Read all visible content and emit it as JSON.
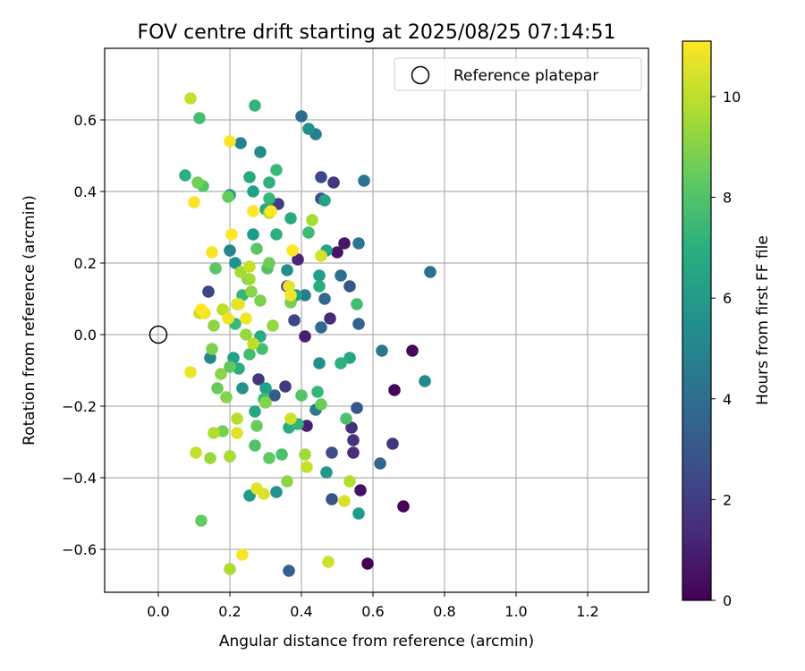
{
  "chart_data": {
    "type": "scatter",
    "title": "FOV centre drift starting at 2025/08/25 07:14:51",
    "xlabel": "Angular distance from reference (arcmin)",
    "ylabel": "Rotation from reference (arcmin)",
    "xlim": [
      -0.15,
      1.37
    ],
    "ylim": [
      -0.72,
      0.8
    ],
    "x_ticks": [
      0.0,
      0.2,
      0.4,
      0.6,
      0.8,
      1.0,
      1.2
    ],
    "x_tick_labels": [
      "0.0",
      "0.2",
      "0.4",
      "0.6",
      "0.8",
      "1.0",
      "1.2"
    ],
    "y_ticks": [
      -0.6,
      -0.4,
      -0.2,
      0.0,
      0.2,
      0.4,
      0.6
    ],
    "y_tick_labels": [
      "−0.6",
      "−0.4",
      "−0.2",
      "0.0",
      "0.2",
      "0.4",
      "0.6"
    ],
    "grid": true,
    "legend": {
      "position": "top-right",
      "entries": [
        "Reference platepar"
      ]
    },
    "reference_point": {
      "x": 0.0,
      "y": 0.0,
      "label": "Reference platepar"
    },
    "colorbar": {
      "label": "Hours from first FF file",
      "colormap": "viridis",
      "range": [
        0,
        11.1
      ],
      "ticks": [
        0,
        2,
        4,
        6,
        8,
        10
      ],
      "tick_labels": [
        "0",
        "2",
        "4",
        "6",
        "8",
        "10"
      ]
    },
    "points": [
      {
        "x": 0.685,
        "y": -0.48,
        "h": 0.1
      },
      {
        "x": 0.585,
        "y": -0.64,
        "h": 0.1
      },
      {
        "x": 0.66,
        "y": -0.155,
        "h": 0.2
      },
      {
        "x": 0.71,
        "y": -0.045,
        "h": 0.3
      },
      {
        "x": 0.565,
        "y": -0.435,
        "h": 0.5
      },
      {
        "x": 0.5,
        "y": 0.23,
        "h": 0.6
      },
      {
        "x": 0.52,
        "y": 0.255,
        "h": 0.7
      },
      {
        "x": 0.415,
        "y": -0.255,
        "h": 1.0
      },
      {
        "x": 0.41,
        "y": -0.005,
        "h": 1.0
      },
      {
        "x": 0.39,
        "y": 0.21,
        "h": 1.2
      },
      {
        "x": 0.48,
        "y": 0.045,
        "h": 1.3
      },
      {
        "x": 0.545,
        "y": -0.33,
        "h": 1.4
      },
      {
        "x": 0.545,
        "y": -0.295,
        "h": 1.6
      },
      {
        "x": 0.54,
        "y": -0.26,
        "h": 1.6
      },
      {
        "x": 0.655,
        "y": -0.305,
        "h": 1.7
      },
      {
        "x": 0.49,
        "y": 0.425,
        "h": 1.8
      },
      {
        "x": 0.28,
        "y": -0.125,
        "h": 1.8
      },
      {
        "x": 0.36,
        "y": 0.135,
        "h": 1.9
      },
      {
        "x": 0.355,
        "y": -0.145,
        "h": 1.9
      },
      {
        "x": 0.335,
        "y": 0.365,
        "h": 2.0
      },
      {
        "x": 0.14,
        "y": 0.12,
        "h": 2.2
      },
      {
        "x": 0.38,
        "y": 0.04,
        "h": 2.3
      },
      {
        "x": 0.455,
        "y": 0.44,
        "h": 2.4
      },
      {
        "x": 0.455,
        "y": 0.38,
        "h": 2.6
      },
      {
        "x": 0.485,
        "y": -0.33,
        "h": 2.6
      },
      {
        "x": 0.485,
        "y": -0.46,
        "h": 2.8
      },
      {
        "x": 0.555,
        "y": -0.205,
        "h": 2.9
      },
      {
        "x": 0.535,
        "y": 0.135,
        "h": 3.0
      },
      {
        "x": 0.325,
        "y": -0.17,
        "h": 3.2
      },
      {
        "x": 0.365,
        "y": -0.66,
        "h": 3.4
      },
      {
        "x": 0.56,
        "y": 0.03,
        "h": 3.5
      },
      {
        "x": 0.62,
        "y": -0.36,
        "h": 3.6
      },
      {
        "x": 0.465,
        "y": 0.1,
        "h": 3.7
      },
      {
        "x": 0.455,
        "y": 0.02,
        "h": 3.8
      },
      {
        "x": 0.4,
        "y": 0.61,
        "h": 3.9
      },
      {
        "x": 0.76,
        "y": 0.175,
        "h": 4.0
      },
      {
        "x": 0.51,
        "y": 0.165,
        "h": 4.1
      },
      {
        "x": 0.575,
        "y": 0.43,
        "h": 4.2
      },
      {
        "x": 0.56,
        "y": 0.255,
        "h": 4.3
      },
      {
        "x": 0.625,
        "y": -0.045,
        "h": 4.4
      },
      {
        "x": 0.44,
        "y": -0.21,
        "h": 4.5
      },
      {
        "x": 0.31,
        "y": 0.35,
        "h": 4.6
      },
      {
        "x": 0.41,
        "y": 0.11,
        "h": 4.7
      },
      {
        "x": 0.44,
        "y": 0.56,
        "h": 4.8
      },
      {
        "x": 0.23,
        "y": 0.535,
        "h": 4.9
      },
      {
        "x": 0.2,
        "y": 0.235,
        "h": 5.0
      },
      {
        "x": 0.145,
        "y": -0.065,
        "h": 5.1
      },
      {
        "x": 0.745,
        "y": -0.13,
        "h": 5.3
      },
      {
        "x": 0.285,
        "y": 0.51,
        "h": 5.4
      },
      {
        "x": 0.36,
        "y": 0.18,
        "h": 5.5
      },
      {
        "x": 0.45,
        "y": -0.08,
        "h": 5.5
      },
      {
        "x": 0.42,
        "y": 0.575,
        "h": 5.6
      },
      {
        "x": 0.215,
        "y": 0.2,
        "h": 5.6
      },
      {
        "x": 0.33,
        "y": -0.44,
        "h": 5.7
      },
      {
        "x": 0.235,
        "y": -0.15,
        "h": 5.7
      },
      {
        "x": 0.47,
        "y": -0.385,
        "h": 5.8
      },
      {
        "x": 0.2,
        "y": 0.39,
        "h": 5.9
      },
      {
        "x": 0.255,
        "y": -0.45,
        "h": 6.0
      },
      {
        "x": 0.56,
        "y": -0.5,
        "h": 6.0
      },
      {
        "x": 0.265,
        "y": 0.28,
        "h": 6.1
      },
      {
        "x": 0.45,
        "y": 0.165,
        "h": 6.2
      },
      {
        "x": 0.265,
        "y": 0.4,
        "h": 6.2
      },
      {
        "x": 0.21,
        "y": -0.065,
        "h": 6.3
      },
      {
        "x": 0.3,
        "y": -0.15,
        "h": 6.3
      },
      {
        "x": 0.465,
        "y": 0.375,
        "h": 6.4
      },
      {
        "x": 0.385,
        "y": 0.11,
        "h": 6.4
      },
      {
        "x": 0.47,
        "y": 0.235,
        "h": 6.5
      },
      {
        "x": 0.535,
        "y": -0.065,
        "h": 6.5
      },
      {
        "x": 0.27,
        "y": -0.215,
        "h": 6.6
      },
      {
        "x": 0.3,
        "y": 0.35,
        "h": 6.6
      },
      {
        "x": 0.37,
        "y": 0.325,
        "h": 6.7
      },
      {
        "x": 0.255,
        "y": 0.44,
        "h": 6.7
      },
      {
        "x": 0.365,
        "y": -0.26,
        "h": 6.8
      },
      {
        "x": 0.285,
        "y": -0.005,
        "h": 6.8
      },
      {
        "x": 0.45,
        "y": 0.135,
        "h": 6.9
      },
      {
        "x": 0.225,
        "y": -0.095,
        "h": 6.9
      },
      {
        "x": 0.075,
        "y": 0.445,
        "h": 7.0
      },
      {
        "x": 0.33,
        "y": 0.28,
        "h": 7.0
      },
      {
        "x": 0.31,
        "y": 0.425,
        "h": 7.1
      },
      {
        "x": 0.51,
        "y": -0.08,
        "h": 7.1
      },
      {
        "x": 0.2,
        "y": -0.34,
        "h": 7.2
      },
      {
        "x": 0.39,
        "y": -0.25,
        "h": 7.2
      },
      {
        "x": 0.27,
        "y": 0.64,
        "h": 7.3
      },
      {
        "x": 0.235,
        "y": 0.11,
        "h": 7.3
      },
      {
        "x": 0.445,
        "y": -0.16,
        "h": 7.4
      },
      {
        "x": 0.31,
        "y": 0.38,
        "h": 7.4
      },
      {
        "x": 0.33,
        "y": 0.46,
        "h": 7.5
      },
      {
        "x": 0.215,
        "y": 0.03,
        "h": 7.5
      },
      {
        "x": 0.42,
        "y": 0.285,
        "h": 7.6
      },
      {
        "x": 0.295,
        "y": -0.18,
        "h": 7.6
      },
      {
        "x": 0.255,
        "y": -0.055,
        "h": 7.7
      },
      {
        "x": 0.115,
        "y": 0.605,
        "h": 7.7
      },
      {
        "x": 0.29,
        "y": -0.04,
        "h": 7.8
      },
      {
        "x": 0.555,
        "y": 0.085,
        "h": 7.8
      },
      {
        "x": 0.525,
        "y": -0.235,
        "h": 7.9
      },
      {
        "x": 0.345,
        "y": -0.335,
        "h": 7.9
      },
      {
        "x": 0.305,
        "y": 0.185,
        "h": 8.0
      },
      {
        "x": 0.27,
        "y": -0.31,
        "h": 8.0
      },
      {
        "x": 0.125,
        "y": 0.415,
        "h": 8.1
      },
      {
        "x": 0.4,
        "y": -0.17,
        "h": 8.1
      },
      {
        "x": 0.16,
        "y": 0.185,
        "h": 8.2
      },
      {
        "x": 0.275,
        "y": 0.24,
        "h": 8.2
      },
      {
        "x": 0.2,
        "y": -0.09,
        "h": 8.3
      },
      {
        "x": 0.31,
        "y": -0.345,
        "h": 8.3
      },
      {
        "x": 0.195,
        "y": 0.385,
        "h": 8.4
      },
      {
        "x": 0.12,
        "y": -0.52,
        "h": 8.4
      },
      {
        "x": 0.275,
        "y": -0.255,
        "h": 8.5
      },
      {
        "x": 0.165,
        "y": -0.15,
        "h": 8.5
      },
      {
        "x": 0.31,
        "y": 0.2,
        "h": 8.6
      },
      {
        "x": 0.455,
        "y": -0.195,
        "h": 8.6
      },
      {
        "x": 0.11,
        "y": 0.425,
        "h": 8.7
      },
      {
        "x": 0.25,
        "y": 0.155,
        "h": 8.7
      },
      {
        "x": 0.18,
        "y": -0.27,
        "h": 8.8
      },
      {
        "x": 0.37,
        "y": 0.09,
        "h": 8.8
      },
      {
        "x": 0.285,
        "y": 0.095,
        "h": 8.9
      },
      {
        "x": 0.15,
        "y": -0.04,
        "h": 8.9
      },
      {
        "x": 0.19,
        "y": -0.175,
        "h": 9.0
      },
      {
        "x": 0.3,
        "y": -0.19,
        "h": 9.0
      },
      {
        "x": 0.26,
        "y": 0.12,
        "h": 9.1
      },
      {
        "x": 0.175,
        "y": -0.11,
        "h": 9.1
      },
      {
        "x": 0.36,
        "y": -0.41,
        "h": 9.2
      },
      {
        "x": 0.155,
        "y": 0.025,
        "h": 9.2
      },
      {
        "x": 0.32,
        "y": 0.025,
        "h": 9.3
      },
      {
        "x": 0.245,
        "y": 0.0,
        "h": 9.3
      },
      {
        "x": 0.18,
        "y": 0.07,
        "h": 9.4
      },
      {
        "x": 0.145,
        "y": -0.345,
        "h": 9.4
      },
      {
        "x": 0.41,
        "y": -0.335,
        "h": 9.5
      },
      {
        "x": 0.255,
        "y": 0.155,
        "h": 9.5
      },
      {
        "x": 0.43,
        "y": 0.32,
        "h": 9.6
      },
      {
        "x": 0.23,
        "y": 0.175,
        "h": 9.6
      },
      {
        "x": 0.2,
        "y": -0.655,
        "h": 9.7
      },
      {
        "x": 0.2,
        "y": -0.34,
        "h": 9.7
      },
      {
        "x": 0.535,
        "y": -0.41,
        "h": 9.8
      },
      {
        "x": 0.155,
        "y": -0.275,
        "h": 9.8
      },
      {
        "x": 0.22,
        "y": -0.235,
        "h": 9.9
      },
      {
        "x": 0.31,
        "y": 0.34,
        "h": 9.9
      },
      {
        "x": 0.265,
        "y": -0.025,
        "h": 10.0
      },
      {
        "x": 0.18,
        "y": 0.07,
        "h": 10.0
      },
      {
        "x": 0.105,
        "y": -0.33,
        "h": 10.1
      },
      {
        "x": 0.115,
        "y": 0.06,
        "h": 10.1
      },
      {
        "x": 0.09,
        "y": 0.66,
        "h": 10.1
      },
      {
        "x": 0.255,
        "y": 0.19,
        "h": 10.2
      },
      {
        "x": 0.415,
        "y": -0.37,
        "h": 10.2
      },
      {
        "x": 0.475,
        "y": -0.635,
        "h": 10.3
      },
      {
        "x": 0.37,
        "y": -0.235,
        "h": 10.3
      },
      {
        "x": 0.455,
        "y": 0.22,
        "h": 10.4
      },
      {
        "x": 0.22,
        "y": 0.085,
        "h": 10.4
      },
      {
        "x": 0.52,
        "y": -0.465,
        "h": 10.5
      },
      {
        "x": 0.295,
        "y": -0.445,
        "h": 10.5
      },
      {
        "x": 0.275,
        "y": -0.43,
        "h": 10.6
      },
      {
        "x": 0.22,
        "y": -0.275,
        "h": 10.6
      },
      {
        "x": 0.225,
        "y": 0.085,
        "h": 10.7
      },
      {
        "x": 0.365,
        "y": 0.135,
        "h": 10.7
      },
      {
        "x": 0.09,
        "y": -0.105,
        "h": 10.8
      },
      {
        "x": 0.195,
        "y": 0.045,
        "h": 10.8
      },
      {
        "x": 0.245,
        "y": 0.045,
        "h": 10.9
      },
      {
        "x": 0.37,
        "y": 0.11,
        "h": 10.9
      },
      {
        "x": 0.13,
        "y": 0.06,
        "h": 10.9
      },
      {
        "x": 0.235,
        "y": -0.615,
        "h": 11.0
      },
      {
        "x": 0.1,
        "y": 0.37,
        "h": 11.0
      },
      {
        "x": 0.15,
        "y": 0.23,
        "h": 11.0
      },
      {
        "x": 0.2,
        "y": 0.54,
        "h": 11.0
      },
      {
        "x": 0.375,
        "y": 0.235,
        "h": 11.1
      },
      {
        "x": 0.315,
        "y": 0.345,
        "h": 11.1
      },
      {
        "x": 0.205,
        "y": 0.28,
        "h": 11.1
      },
      {
        "x": 0.12,
        "y": 0.07,
        "h": 11.1
      },
      {
        "x": 0.265,
        "y": 0.345,
        "h": 11.1
      }
    ]
  }
}
